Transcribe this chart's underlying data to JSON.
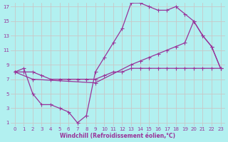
{
  "bg_color": "#b2f0f0",
  "grid_color": "#d0d0d0",
  "line_color": "#993399",
  "xlabel": "Windchill (Refroidissement éolien,°C)",
  "xlim": [
    -0.5,
    23.5
  ],
  "ylim": [
    0.5,
    17.5
  ],
  "xticks": [
    0,
    1,
    2,
    3,
    4,
    5,
    6,
    7,
    8,
    9,
    10,
    11,
    12,
    13,
    14,
    15,
    16,
    17,
    18,
    19,
    20,
    21,
    22,
    23
  ],
  "yticks": [
    1,
    3,
    5,
    7,
    9,
    11,
    13,
    15,
    17
  ],
  "line1_x": [
    0,
    1,
    2,
    3,
    4,
    5,
    6,
    7,
    8,
    9,
    10,
    11,
    12,
    13,
    14,
    15,
    16,
    17,
    18,
    19,
    20,
    21,
    22,
    23
  ],
  "line1_y": [
    8,
    8.5,
    5,
    3.5,
    3.5,
    3,
    2.5,
    1,
    2,
    8,
    10,
    12,
    14,
    17.5,
    17.5,
    17,
    16.5,
    16.5,
    17,
    16,
    15,
    13,
    11.5,
    8.5
  ],
  "line2_x": [
    0,
    2,
    9,
    13,
    14,
    15,
    16,
    17,
    18,
    19,
    20,
    21,
    22,
    23
  ],
  "line2_y": [
    8,
    7,
    6.5,
    9,
    9.5,
    10,
    10.5,
    11,
    11.5,
    12,
    15,
    13,
    11.5,
    8.5
  ],
  "line3_x": [
    0,
    1,
    2,
    3,
    4,
    5,
    6,
    7,
    8,
    9,
    10,
    11,
    12,
    13,
    14,
    15,
    16,
    17,
    18,
    19,
    20,
    21,
    22,
    23
  ],
  "line3_y": [
    8,
    8,
    8,
    7.5,
    7,
    7,
    7,
    7,
    7,
    7,
    7.5,
    8,
    8,
    8.5,
    8.5,
    8.5,
    8.5,
    8.5,
    8.5,
    8.5,
    8.5,
    8.5,
    8.5,
    8.5
  ]
}
